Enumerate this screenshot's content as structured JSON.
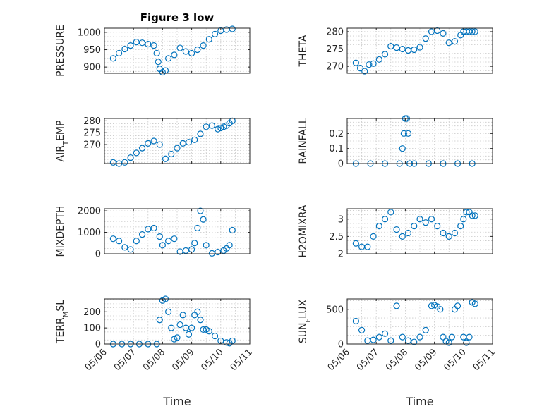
{
  "chart_data": {
    "title": "Figure 3 low",
    "xlabel": "Time",
    "x_ticks": [
      "05/06",
      "05/07",
      "05/08",
      "05/09",
      "05/10",
      "05/11"
    ],
    "x_range": [
      0,
      5
    ],
    "marker_color": "#0072BD",
    "subplots": [
      {
        "type": "scatter",
        "ylabel": "PRESSURE",
        "ylim": [
          882,
          1012
        ],
        "yticks": [
          900,
          950,
          1000
        ],
        "grid": true,
        "series": [
          {
            "x": [
              0.3,
              0.5,
              0.7,
              0.9,
              1.1,
              1.3,
              1.5,
              1.7,
              1.8,
              1.85,
              1.9,
              2.0,
              2.1,
              2.2,
              2.4,
              2.6,
              2.8,
              3.0,
              3.2,
              3.4,
              3.6,
              3.8,
              4.0,
              4.2,
              4.4
            ],
            "y": [
              925,
              940,
              952,
              962,
              972,
              970,
              966,
              962,
              940,
              915,
              895,
              885,
              890,
              925,
              935,
              955,
              945,
              940,
              950,
              962,
              980,
              995,
              1005,
              1008,
              1010
            ]
          }
        ]
      },
      {
        "type": "scatter",
        "ylabel": "THETA",
        "ylim": [
          268,
          281
        ],
        "yticks": [
          270,
          275,
          280
        ],
        "grid": true,
        "series": [
          {
            "x": [
              0.3,
              0.45,
              0.6,
              0.75,
              0.9,
              1.1,
              1.3,
              1.5,
              1.7,
              1.9,
              2.1,
              2.3,
              2.5,
              2.7,
              2.9,
              3.1,
              3.3,
              3.5,
              3.7,
              3.9,
              4.0,
              4.1,
              4.2,
              4.3,
              4.4
            ],
            "y": [
              271,
              269.5,
              268.6,
              270.5,
              270.8,
              272,
              273.5,
              275.8,
              275.4,
              275,
              274.6,
              274.8,
              275.5,
              278,
              280,
              280.3,
              279.5,
              276.8,
              277.2,
              279,
              280,
              280,
              280,
              280,
              280
            ]
          }
        ]
      },
      {
        "type": "scatter",
        "ylabel": "AIR_TEMP",
        "ylim": [
          262,
          281
        ],
        "yticks": [
          270,
          275,
          280
        ],
        "grid": true,
        "series": [
          {
            "x": [
              0.3,
              0.5,
              0.7,
              0.9,
              1.1,
              1.3,
              1.5,
              1.7,
              1.9,
              2.1,
              2.3,
              2.5,
              2.7,
              2.9,
              3.1,
              3.3,
              3.5,
              3.7,
              3.9,
              4.0,
              4.1,
              4.2,
              4.3,
              4.4
            ],
            "y": [
              262.5,
              262,
              262.5,
              264.5,
              266.5,
              268.5,
              270.5,
              271.5,
              270,
              264,
              266,
              268.5,
              270.5,
              271,
              272,
              274.5,
              277.5,
              278,
              276.5,
              277,
              277.5,
              278,
              279,
              280
            ]
          }
        ]
      },
      {
        "type": "scatter",
        "ylabel": "RAINFALL",
        "ylim": [
          0,
          0.3
        ],
        "yticks": [
          0,
          0.1,
          0.2
        ],
        "grid": true,
        "series": [
          {
            "x": [
              0.3,
              0.8,
              1.3,
              1.8,
              1.9,
              1.95,
              2.0,
              2.05,
              2.1,
              2.15,
              2.3,
              2.8,
              3.3,
              3.8,
              4.3
            ],
            "y": [
              0,
              0,
              0,
              0,
              0.1,
              0.2,
              0.3,
              0.3,
              0.2,
              0,
              0,
              0,
              0,
              0,
              0
            ]
          }
        ]
      },
      {
        "type": "scatter",
        "ylabel": "MIXDEPTH",
        "ylim": [
          0,
          2100
        ],
        "yticks": [
          0,
          1000,
          2000
        ],
        "grid": true,
        "series": [
          {
            "x": [
              0.3,
              0.5,
              0.7,
              0.9,
              1.1,
              1.3,
              1.5,
              1.7,
              1.9,
              2.0,
              2.2,
              2.4,
              2.6,
              2.8,
              3.0,
              3.1,
              3.2,
              3.3,
              3.4,
              3.5,
              3.7,
              3.9,
              4.1,
              4.2,
              4.3,
              4.4
            ],
            "y": [
              700,
              600,
              300,
              200,
              600,
              900,
              1150,
              1200,
              800,
              400,
              600,
              700,
              100,
              150,
              200,
              500,
              1200,
              2000,
              1600,
              400,
              20,
              80,
              150,
              250,
              400,
              1100
            ]
          }
        ]
      },
      {
        "type": "scatter",
        "ylabel": "H2OMIXRA",
        "ylim": [
          2,
          3.3
        ],
        "yticks": [
          2,
          2.5,
          3
        ],
        "grid": true,
        "series": [
          {
            "x": [
              0.3,
              0.5,
              0.7,
              0.9,
              1.1,
              1.3,
              1.5,
              1.7,
              1.9,
              2.1,
              2.3,
              2.5,
              2.7,
              2.9,
              3.1,
              3.3,
              3.5,
              3.7,
              3.9,
              4.0,
              4.1,
              4.2,
              4.3,
              4.4
            ],
            "y": [
              2.3,
              2.2,
              2.2,
              2.5,
              2.8,
              3.0,
              3.2,
              2.7,
              2.5,
              2.6,
              2.8,
              3.0,
              2.9,
              3.0,
              2.8,
              2.6,
              2.5,
              2.6,
              2.8,
              3.0,
              3.2,
              3.2,
              3.1,
              3.1
            ]
          }
        ]
      },
      {
        "type": "scatter",
        "ylabel": "TERR_MSL",
        "ylim": [
          0,
          280
        ],
        "yticks": [
          0,
          100,
          200
        ],
        "grid": true,
        "series": [
          {
            "x": [
              0.3,
              0.6,
              0.9,
              1.2,
              1.5,
              1.8,
              1.9,
              2.0,
              2.1,
              2.2,
              2.3,
              2.4,
              2.5,
              2.6,
              2.7,
              2.8,
              2.9,
              3.0,
              3.1,
              3.2,
              3.3,
              3.4,
              3.5,
              3.6,
              3.8,
              4.0,
              4.2,
              4.3,
              4.4
            ],
            "y": [
              0,
              0,
              0,
              0,
              0,
              0,
              150,
              270,
              280,
              200,
              100,
              30,
              40,
              120,
              180,
              100,
              60,
              100,
              180,
              200,
              150,
              90,
              90,
              80,
              50,
              20,
              10,
              5,
              20
            ]
          }
        ]
      },
      {
        "type": "scatter",
        "ylabel": "SUN_FLUX",
        "ylim": [
          0,
          650
        ],
        "yticks": [
          0,
          500
        ],
        "grid": true,
        "series": [
          {
            "x": [
              0.3,
              0.5,
              0.7,
              0.9,
              1.1,
              1.3,
              1.5,
              1.7,
              1.9,
              2.1,
              2.3,
              2.5,
              2.7,
              2.9,
              3.0,
              3.1,
              3.2,
              3.3,
              3.4,
              3.5,
              3.6,
              3.7,
              3.8,
              4.0,
              4.1,
              4.2,
              4.3,
              4.4
            ],
            "y": [
              330,
              200,
              50,
              60,
              100,
              150,
              50,
              550,
              100,
              50,
              30,
              100,
              200,
              550,
              560,
              540,
              500,
              100,
              40,
              20,
              100,
              500,
              550,
              100,
              20,
              100,
              600,
              580
            ]
          }
        ]
      }
    ]
  }
}
